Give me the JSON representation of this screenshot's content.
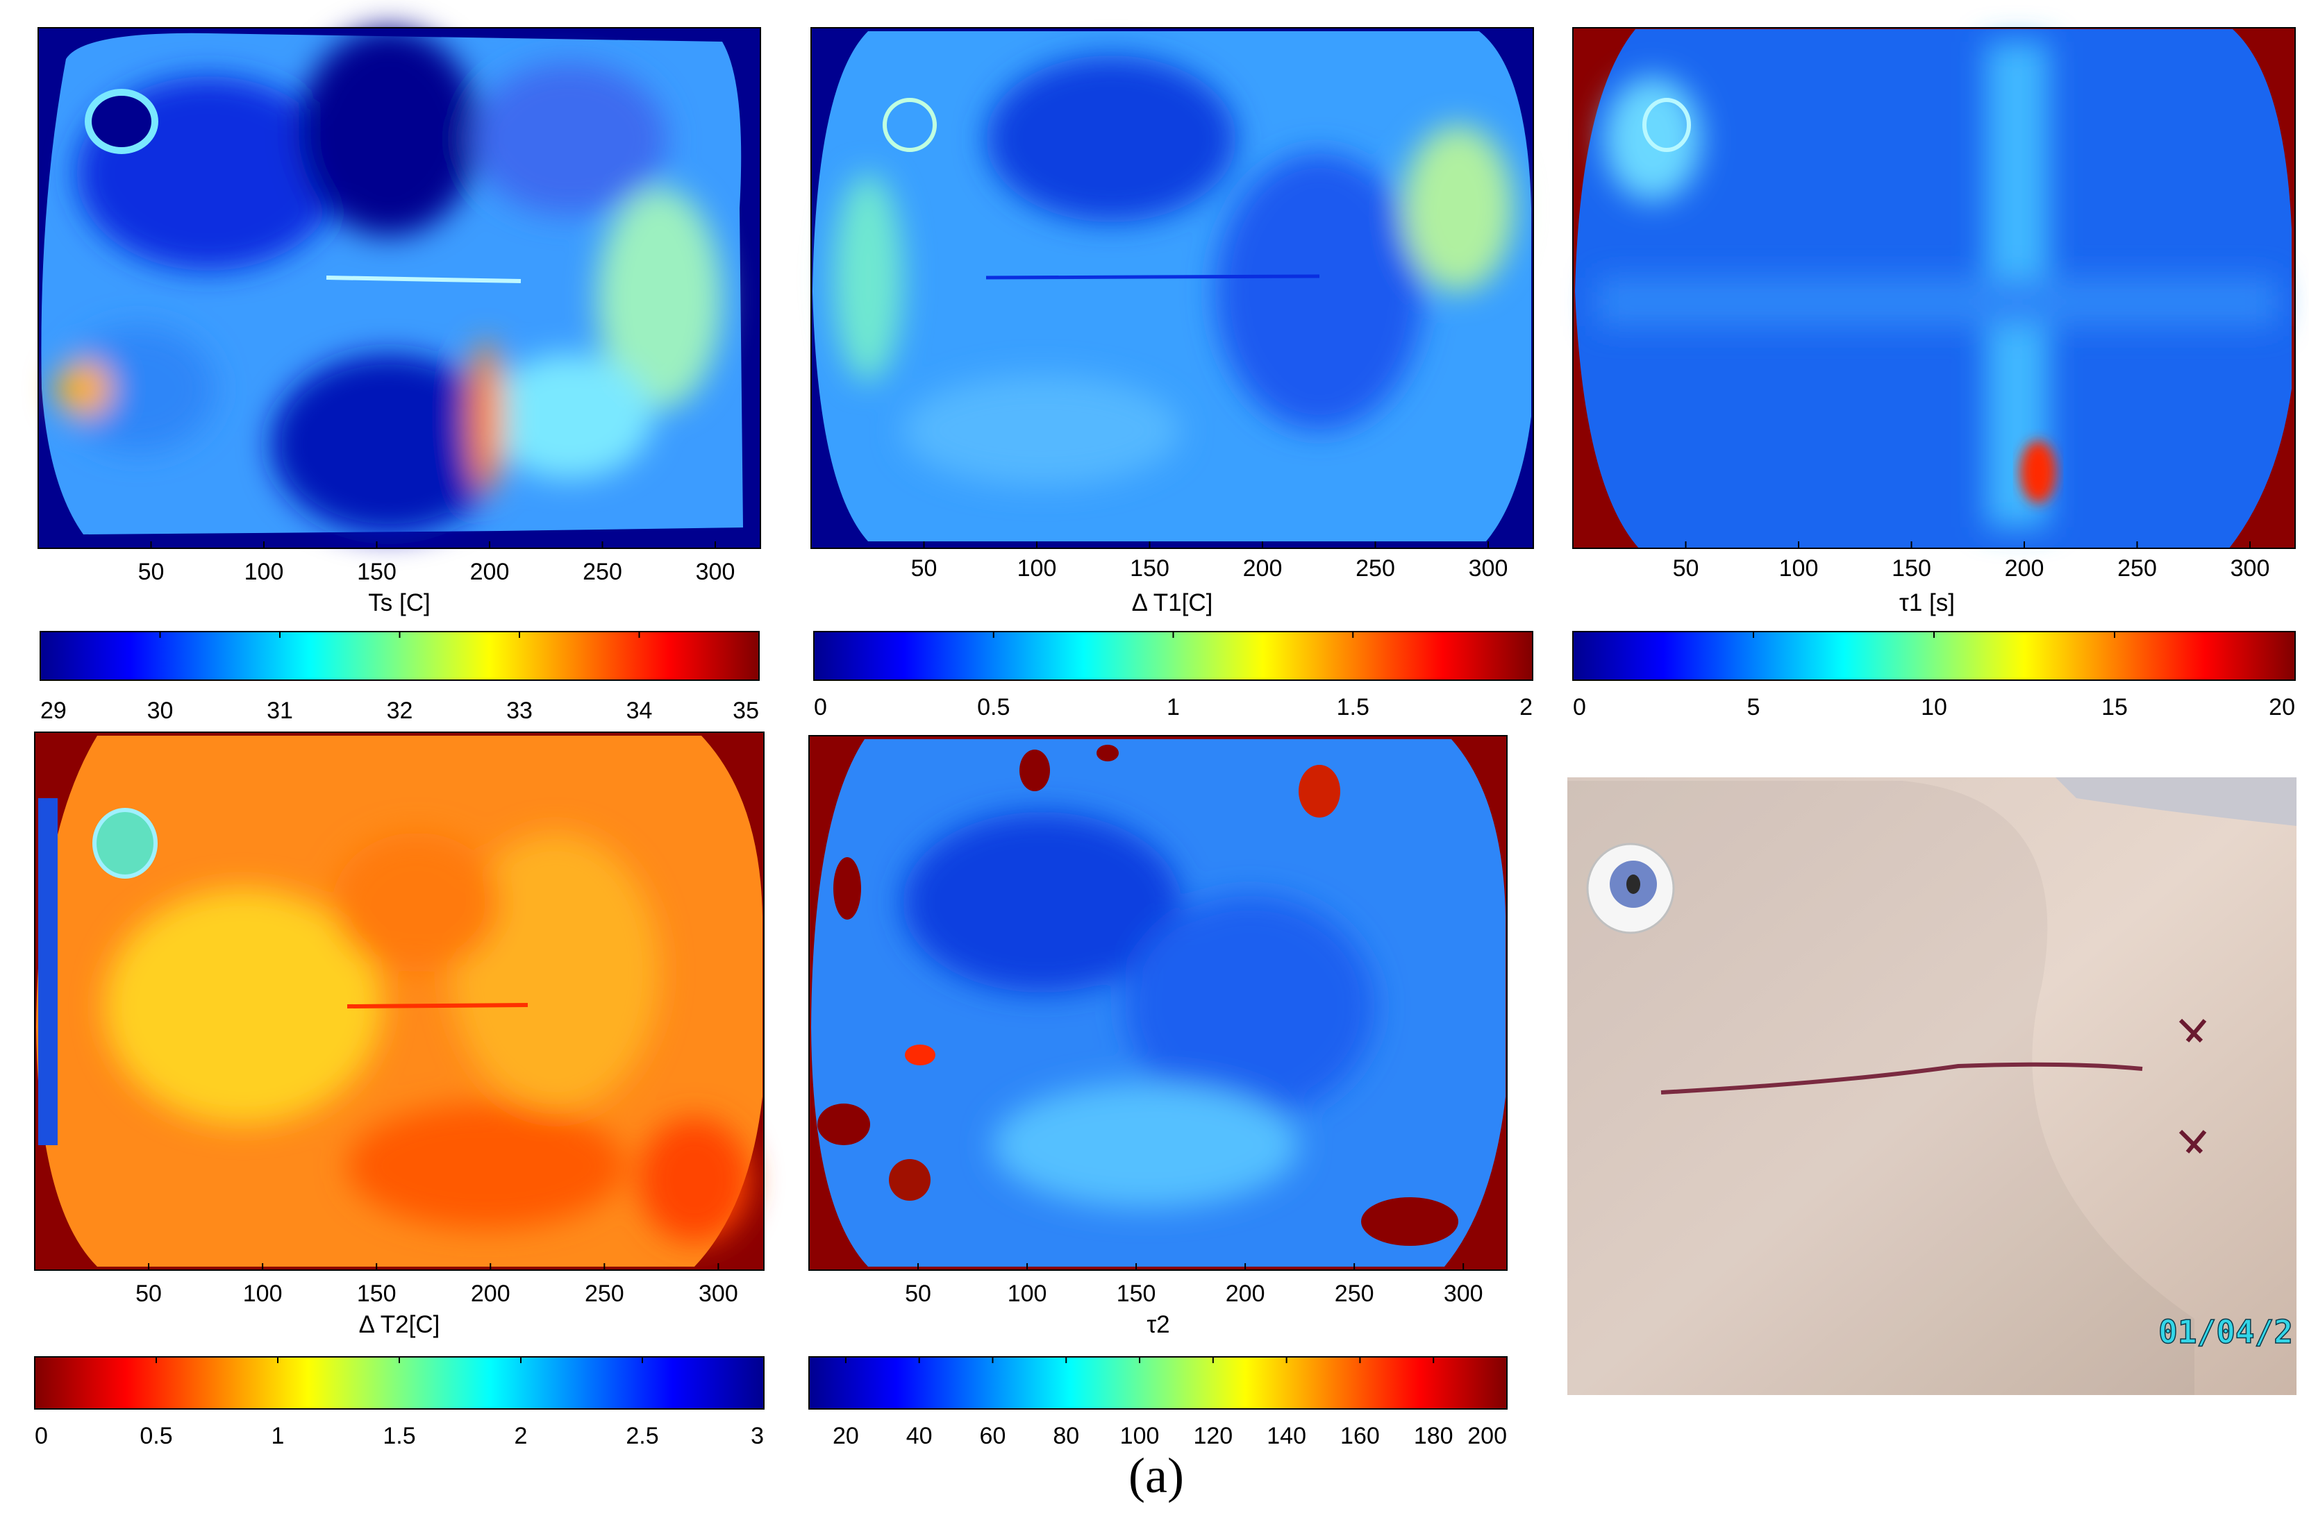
{
  "figure_caption": "(a)",
  "photo": {
    "date_stamp": "01/04/2",
    "alt": "chest-incision-photo"
  },
  "chart_data": [
    {
      "type": "heatmap",
      "name": "Ts",
      "xlabel": "Ts [C]",
      "xticks": [
        50,
        100,
        150,
        200,
        250,
        300
      ],
      "xlim": [
        0,
        320
      ],
      "shape": "rounded-rectangle",
      "colormap": "jet",
      "colorbar": {
        "ticks": [
          "29",
          "30",
          "31",
          "32",
          "33",
          "34",
          "35"
        ],
        "range": [
          29,
          35
        ],
        "reversed": false
      }
    },
    {
      "type": "heatmap",
      "name": "dT1",
      "xlabel": "Δ T1[C]",
      "xticks": [
        50,
        100,
        150,
        200,
        250,
        300
      ],
      "xlim": [
        0,
        320
      ],
      "shape": "ellipse",
      "colormap": "jet",
      "colorbar": {
        "ticks": [
          "0",
          "0.5",
          "1",
          "1.5",
          "2"
        ],
        "range": [
          0,
          2
        ],
        "reversed": false
      }
    },
    {
      "type": "heatmap",
      "name": "tau1",
      "xlabel": "τ1 [s]",
      "xticks": [
        50,
        100,
        150,
        200,
        250,
        300
      ],
      "xlim": [
        0,
        320
      ],
      "shape": "ellipse",
      "colormap": "jet",
      "colorbar": {
        "ticks": [
          "0",
          "5",
          "10",
          "15",
          "20"
        ],
        "range": [
          0,
          20
        ],
        "reversed": false
      }
    },
    {
      "type": "heatmap",
      "name": "dT2",
      "xlabel": "Δ T2[C]",
      "xticks": [
        50,
        100,
        150,
        200,
        250,
        300
      ],
      "xlim": [
        0,
        320
      ],
      "shape": "ellipse",
      "colormap": "jet-reversed",
      "colorbar": {
        "ticks": [
          "0",
          "0.5",
          "1",
          "1.5",
          "2",
          "2.5",
          "3"
        ],
        "range": [
          0,
          3
        ],
        "reversed": true
      }
    },
    {
      "type": "heatmap",
      "name": "tau2",
      "xlabel": "τ2",
      "xticks": [
        50,
        100,
        150,
        200,
        250,
        300
      ],
      "xlim": [
        0,
        320
      ],
      "shape": "ellipse",
      "colormap": "jet",
      "colorbar": {
        "ticks": [
          "20",
          "40",
          "60",
          "80",
          "100",
          "120",
          "140",
          "160",
          "180",
          "200"
        ],
        "range": [
          10,
          200
        ],
        "reversed": false
      }
    }
  ],
  "colors": {
    "jet_stops": [
      "#00008f",
      "#0000ff",
      "#0080ff",
      "#00ffff",
      "#80ff80",
      "#ffff00",
      "#ff8000",
      "#ff0000",
      "#800000"
    ],
    "mask_red": "#8b0000",
    "mask_blue": "#00008f"
  }
}
